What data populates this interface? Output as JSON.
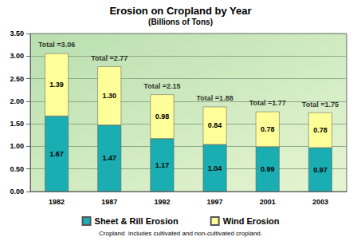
{
  "chart_data": {
    "type": "bar",
    "title": "Erosion on Cropland by Year",
    "subtitle": "(Billions of Tons)",
    "footnote": "Cropland  includes cultivated and non-cultivated cropland.",
    "categories": [
      "1982",
      "1987",
      "1992",
      "1997",
      "2001",
      "2003"
    ],
    "series": [
      {
        "name": "Sheet & Rill Erosion",
        "color": "#1aaeb3",
        "values": [
          1.67,
          1.47,
          1.17,
          1.04,
          0.99,
          0.97
        ],
        "value_labels": [
          "1.67",
          "1.47",
          "1.17",
          "1.04",
          "0.99",
          "0.97"
        ]
      },
      {
        "name": "Wind Erosion",
        "color": "#ffff99",
        "values": [
          1.39,
          1.3,
          0.98,
          0.84,
          0.78,
          0.78
        ],
        "value_labels": [
          "1.39",
          "1.30",
          "0.98",
          "0.84",
          "0.78",
          "0.78"
        ]
      }
    ],
    "annotations": [
      {
        "text": "Total =3.06",
        "x": "1982",
        "y": 3.06
      },
      {
        "text": "Total =2.77",
        "x": "1987",
        "y": 2.77
      },
      {
        "text": "Total =2.15",
        "x": "1992",
        "y": 2.15
      },
      {
        "text": "Total =1.88",
        "x": "1997",
        "y": 1.88
      },
      {
        "text": "Total =1.77",
        "x": "2001",
        "y": 1.77
      },
      {
        "text": "Total =1.75",
        "x": "2003",
        "y": 1.75
      }
    ],
    "ylim": [
      0,
      3.5
    ],
    "yticks": [
      {
        "value": 0,
        "label": "0.00"
      },
      {
        "value": 0.5,
        "label": "0.50"
      },
      {
        "value": 1,
        "label": "1.00"
      },
      {
        "value": 1.5,
        "label": "1.50"
      },
      {
        "value": 2,
        "label": "2.00"
      },
      {
        "value": 2.5,
        "label": "2.50"
      },
      {
        "value": 3,
        "label": "3.00"
      },
      {
        "value": 3.5,
        "label": "3.50"
      }
    ],
    "stacked": true,
    "data_labels": true,
    "grid": true,
    "legend": "bottom"
  }
}
